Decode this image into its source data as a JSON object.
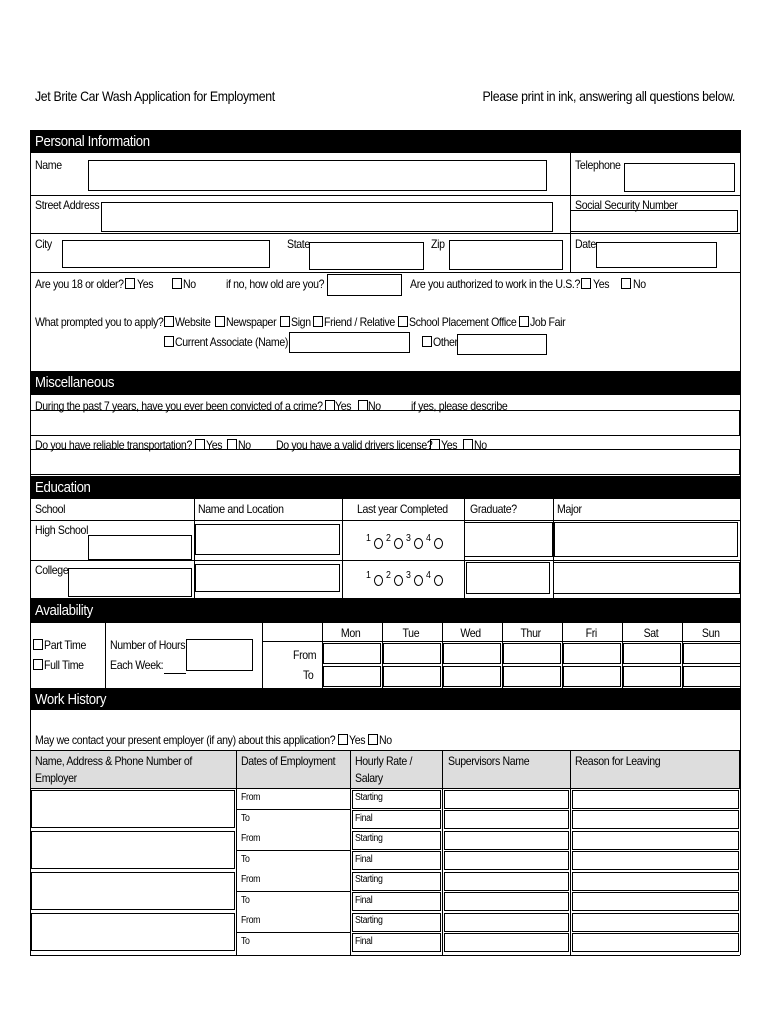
{
  "header": {
    "title": "Jet Brite Car Wash Application for Employment",
    "note": "Please print in ink, answering all questions below."
  },
  "personal": {
    "title": "Personal Information",
    "name": "Name",
    "telephone": "Telephone",
    "street": "Street Address",
    "ssn": "Social Security Number",
    "city": "City",
    "state": "State",
    "zip": "Zip",
    "date": "Date",
    "age_question": "Are you 18 or older?",
    "yes": "Yes",
    "no": "No",
    "age_followup": "if no, how old are you?",
    "authorized_question": "Are you authorized to work in the U.S.?",
    "prompt_question": "What prompted you to apply?",
    "options": [
      "Website",
      "Newspaper",
      "Sign",
      "Friend / Relative",
      "School Placement Office",
      "Job Fair",
      "Current Associate (Name)",
      "Other"
    ]
  },
  "miscellaneous": {
    "title": "Miscellaneous",
    "crime_question": "During the past 7 years, have you ever been convicted of a crime?",
    "crime_followup": "if yes, please describe",
    "transport_question": "Do you have reliable transportation?",
    "license_question": "Do you have a valid drivers license?"
  },
  "education": {
    "title": "Education",
    "columns": [
      "School",
      "Name and Location",
      "Last year Completed",
      "Graduate?",
      "Major"
    ],
    "rows": [
      "High School",
      "College"
    ],
    "years": [
      "1",
      "2",
      "3",
      "4"
    ]
  },
  "availability": {
    "title": "Availability",
    "part_time": "Part Time",
    "full_time": "Full Time",
    "hours_label": "Number of Hours",
    "week_label": "Each Week:",
    "days": [
      "Mon",
      "Tue",
      "Wed",
      "Thur",
      "Fri",
      "Sat",
      "Sun"
    ],
    "from": "From",
    "to": "To"
  },
  "work_history": {
    "title": "Work History",
    "contact_question": "May we contact your present employer (if any) about this application?",
    "columns": [
      "Name, Address & Phone Number of Employer",
      "Dates of Employment",
      "Hourly Rate / Salary",
      "Supervisors Name",
      "Reason for Leaving"
    ],
    "from": "From",
    "to": "To",
    "starting": "Starting",
    "final": "Final"
  }
}
